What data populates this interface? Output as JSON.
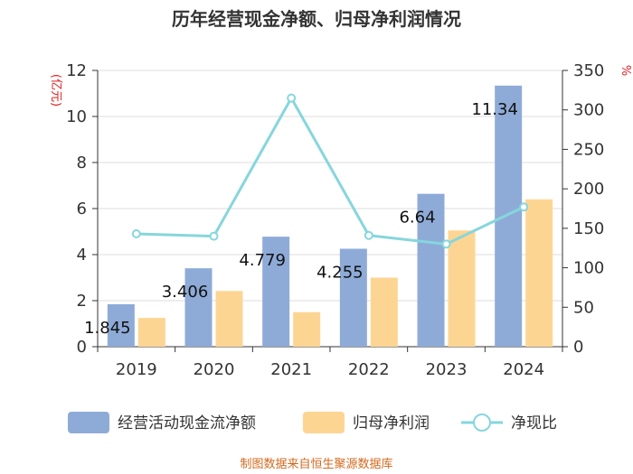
{
  "chart_data": {
    "type": "bar",
    "title": "历年经营现金净额、归母净利润情况",
    "categories": [
      "2019",
      "2020",
      "2021",
      "2022",
      "2023",
      "2024"
    ],
    "series": [
      {
        "name": "经营活动现金流净额",
        "type": "bar",
        "axis": "left",
        "color": "#8eabd8",
        "values": [
          1.845,
          3.406,
          4.779,
          4.255,
          6.64,
          11.34
        ]
      },
      {
        "name": "归母净利润",
        "type": "bar",
        "axis": "left",
        "color": "#fdd593",
        "values": [
          1.25,
          2.42,
          1.5,
          3.0,
          5.05,
          6.4
        ]
      },
      {
        "name": "净现比",
        "type": "line",
        "axis": "right",
        "color": "#86d6dc",
        "values": [
          143,
          140,
          315,
          141,
          130,
          177
        ]
      }
    ],
    "data_labels": [
      "1.845",
      "3.406",
      "4.779",
      "4.255",
      "6.64",
      "11.34"
    ],
    "y_left": {
      "label": "(亿元)",
      "min": 0,
      "max": 12,
      "ticks": [
        "0",
        "2",
        "4",
        "6",
        "8",
        "10",
        "12"
      ]
    },
    "y_right": {
      "label": "%",
      "min": 0,
      "max": 350,
      "ticks": [
        "0",
        "50",
        "100",
        "150",
        "200",
        "250",
        "300",
        "350"
      ]
    },
    "legend_position": "bottom",
    "grid": true
  },
  "source": "制图数据来自恒生聚源数据库"
}
